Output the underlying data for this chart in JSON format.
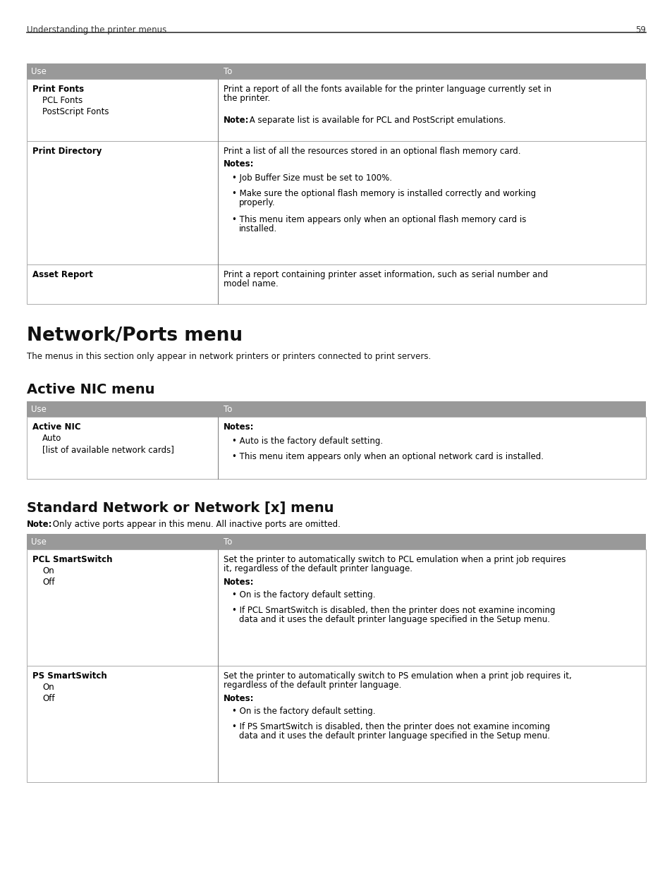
{
  "page_title": "Understanding the printer menus",
  "page_number": "59",
  "bg_color": "#ffffff",
  "header_gray": "#999999",
  "section1_title": "Network/Ports menu",
  "section1_intro": "The menus in this section only appear in network printers or printers connected to print servers.",
  "section2_title": "Active NIC menu",
  "section3_title": "Standard Network or Network [x] menu",
  "section3_note_bold": "Note:",
  "section3_note_rest": " Only active ports appear in this menu. All inactive ports are omitted."
}
